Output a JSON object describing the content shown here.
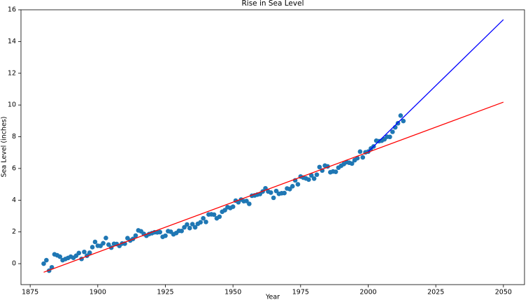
{
  "chart_data": {
    "type": "scatter",
    "title": "Rise in Sea Level",
    "x_label": "Year",
    "y_label": "Sea Level (inches)",
    "xlim": [
      1871.6,
      2057.8
    ],
    "ylim": [
      -1.32,
      16
    ],
    "xticks": [
      1875,
      1900,
      1925,
      1950,
      1975,
      2000,
      2025,
      2050
    ],
    "yticks": [
      0,
      2,
      4,
      6,
      8,
      10,
      12,
      14,
      16
    ],
    "grid": false,
    "series": [
      {
        "mode": "markers",
        "color": "#1f77b4",
        "x": [
          1880,
          1881,
          1882,
          1883,
          1884,
          1885,
          1886,
          1887,
          1888,
          1889,
          1890,
          1891,
          1892,
          1893,
          1894,
          1895,
          1896,
          1897,
          1898,
          1899,
          1900,
          1901,
          1902,
          1903,
          1904,
          1905,
          1906,
          1907,
          1908,
          1909,
          1910,
          1911,
          1912,
          1913,
          1914,
          1915,
          1916,
          1917,
          1918,
          1919,
          1920,
          1921,
          1922,
          1923,
          1924,
          1925,
          1926,
          1927,
          1928,
          1929,
          1930,
          1931,
          1932,
          1933,
          1934,
          1935,
          1936,
          1937,
          1938,
          1939,
          1940,
          1941,
          1942,
          1943,
          1944,
          1945,
          1946,
          1947,
          1948,
          1949,
          1950,
          1951,
          1952,
          1953,
          1954,
          1955,
          1956,
          1957,
          1958,
          1959,
          1960,
          1961,
          1962,
          1963,
          1964,
          1965,
          1966,
          1967,
          1968,
          1969,
          1970,
          1971,
          1972,
          1973,
          1974,
          1975,
          1976,
          1977,
          1978,
          1979,
          1980,
          1981,
          1982,
          1983,
          1984,
          1985,
          1986,
          1987,
          1988,
          1989,
          1990,
          1991,
          1992,
          1993,
          1994,
          1995,
          1996,
          1997,
          1998,
          1999,
          2000,
          2001,
          2002,
          2003,
          2004,
          2005,
          2006,
          2007,
          2008,
          2009,
          2010,
          2011,
          2012,
          2013
        ],
        "values": [
          0,
          0.22,
          -0.44,
          -0.23,
          0.59,
          0.53,
          0.44,
          0.22,
          0.29,
          0.36,
          0.44,
          0.37,
          0.5,
          0.67,
          0.3,
          0.74,
          0.5,
          0.69,
          1.04,
          1.37,
          1.13,
          1.12,
          1.29,
          1.62,
          1.2,
          1.01,
          1.25,
          1.24,
          1.12,
          1.27,
          1.26,
          1.61,
          1.46,
          1.56,
          1.77,
          2.1,
          2.04,
          1.88,
          1.76,
          1.87,
          1.92,
          1.98,
          1.97,
          1.99,
          1.69,
          1.76,
          2.05,
          2.01,
          1.85,
          1.93,
          2.07,
          2.06,
          2.29,
          2.47,
          2.24,
          2.49,
          2.29,
          2.51,
          2.61,
          2.86,
          2.63,
          3.1,
          3.11,
          3.09,
          2.86,
          2.96,
          3.27,
          3.37,
          3.56,
          3.51,
          3.59,
          3.97,
          3.87,
          4.04,
          3.94,
          3.95,
          3.77,
          4.28,
          4.3,
          4.35,
          4.39,
          4.55,
          4.75,
          4.55,
          4.48,
          4.15,
          4.58,
          4.4,
          4.44,
          4.45,
          4.74,
          4.7,
          4.88,
          5.25,
          5,
          5.49,
          5.42,
          5.37,
          5.3,
          5.56,
          5.36,
          5.61,
          6.09,
          5.87,
          6.18,
          6.13,
          5.76,
          5.81,
          5.79,
          6.05,
          6.17,
          6.28,
          6.4,
          6.36,
          6.31,
          6.52,
          6.65,
          7.06,
          6.7,
          7.02,
          7.06,
          7.26,
          7.39,
          7.75,
          7.72,
          7.75,
          7.84,
          8,
          7.99,
          8.31,
          8.59,
          8.85,
          9.33,
          8.99
        ]
      },
      {
        "mode": "line",
        "color": "#ff0000",
        "x": [
          1880,
          2050
        ],
        "values": [
          -0.54,
          10.18
        ]
      },
      {
        "mode": "line",
        "color": "#0000ff",
        "x": [
          2000,
          2050
        ],
        "values": [
          7.06,
          15.38
        ]
      }
    ]
  }
}
